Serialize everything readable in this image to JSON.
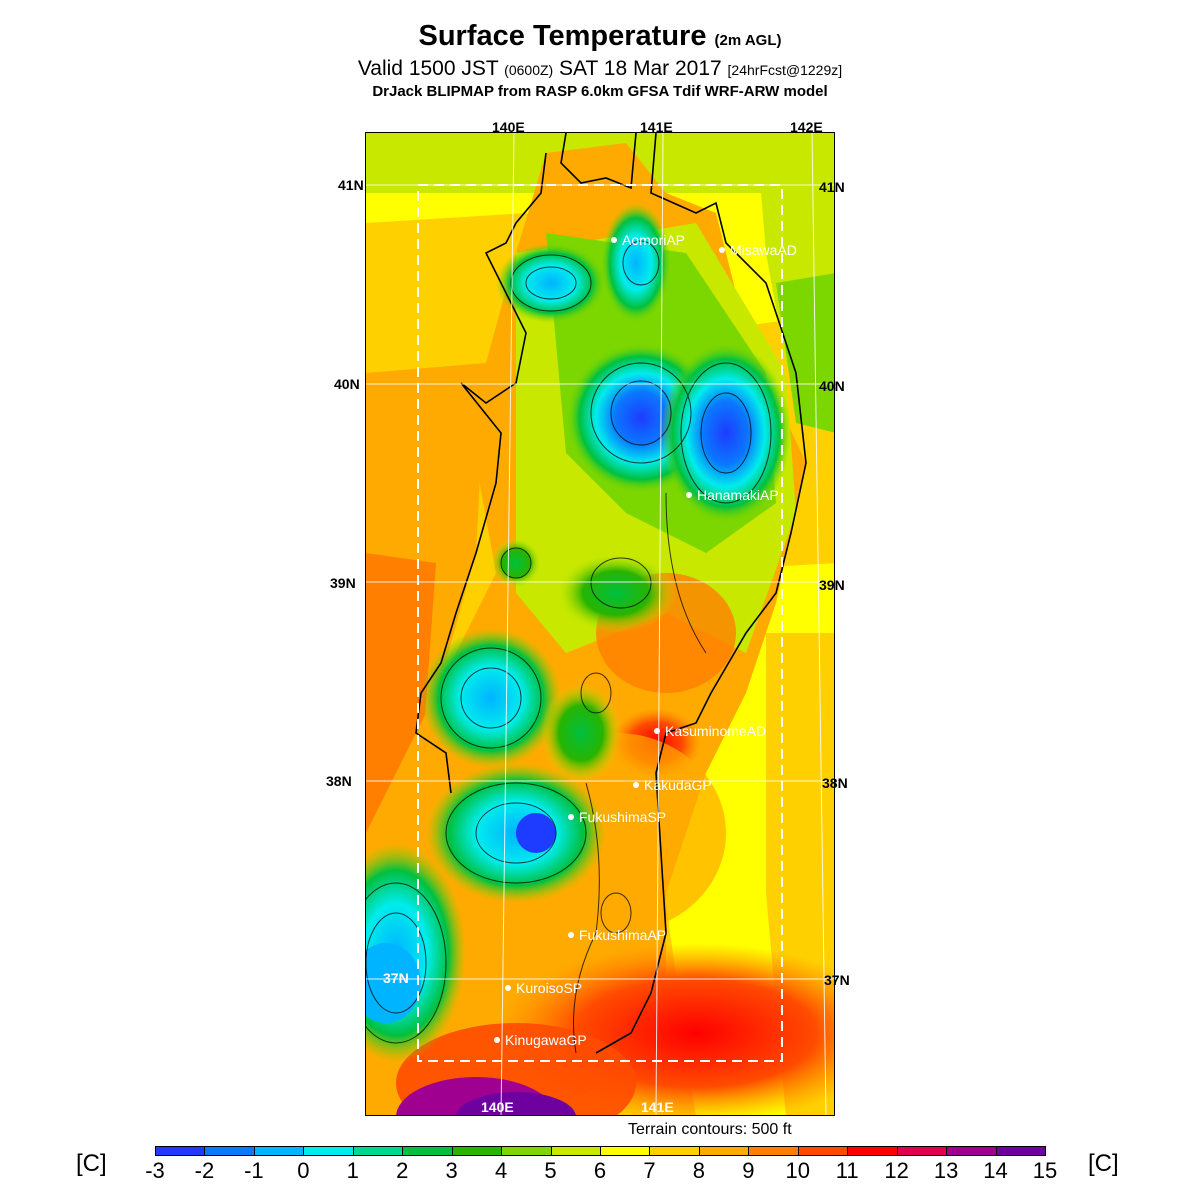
{
  "header": {
    "title": "Surface Temperature",
    "title_suffix": "(2m AGL)",
    "valid_prefix": "Valid 1500 JST",
    "valid_zulu": "(0600Z)",
    "valid_date": "SAT 18 Mar 2017",
    "forecast": "[24hrFcst@1229z]",
    "model_line": "DrJack BLIPMAP from RASP 6.0km GFSA Tdif WRF-ARW model"
  },
  "axes": {
    "lon_top": [
      "140E",
      "141E",
      "142E"
    ],
    "lon_bottom": [
      "140E",
      "141E"
    ],
    "lat_left": [
      "41N",
      "40N",
      "39N",
      "38N",
      "37N"
    ],
    "lat_right": [
      "41N",
      "40N",
      "39N",
      "38N",
      "37N"
    ]
  },
  "stations": [
    {
      "name": "AomoriAP"
    },
    {
      "name": "MisawaAD"
    },
    {
      "name": "HanamakiAP"
    },
    {
      "name": "KasuminomeAD"
    },
    {
      "name": "KakudaGP"
    },
    {
      "name": "FukushimaSP"
    },
    {
      "name": "FukushimaAP"
    },
    {
      "name": "KuroisoSP"
    },
    {
      "name": "KinugawaGP"
    }
  ],
  "note": "Terrain contours: 500 ft",
  "colorbar": {
    "unit": "[C]",
    "ticks": [
      "-3",
      "-2",
      "-1",
      "0",
      "1",
      "2",
      "3",
      "4",
      "5",
      "6",
      "7",
      "8",
      "9",
      "10",
      "11",
      "12",
      "13",
      "14",
      "15"
    ],
    "colors": [
      "#1e3cff",
      "#0a78ff",
      "#00b4ff",
      "#00ecec",
      "#00d890",
      "#00c040",
      "#28b400",
      "#7cd600",
      "#c8e800",
      "#ffff00",
      "#ffd000",
      "#ffaa00",
      "#ff8000",
      "#ff4b00",
      "#ff0000",
      "#e0004e",
      "#a00090",
      "#6e00a0"
    ]
  }
}
